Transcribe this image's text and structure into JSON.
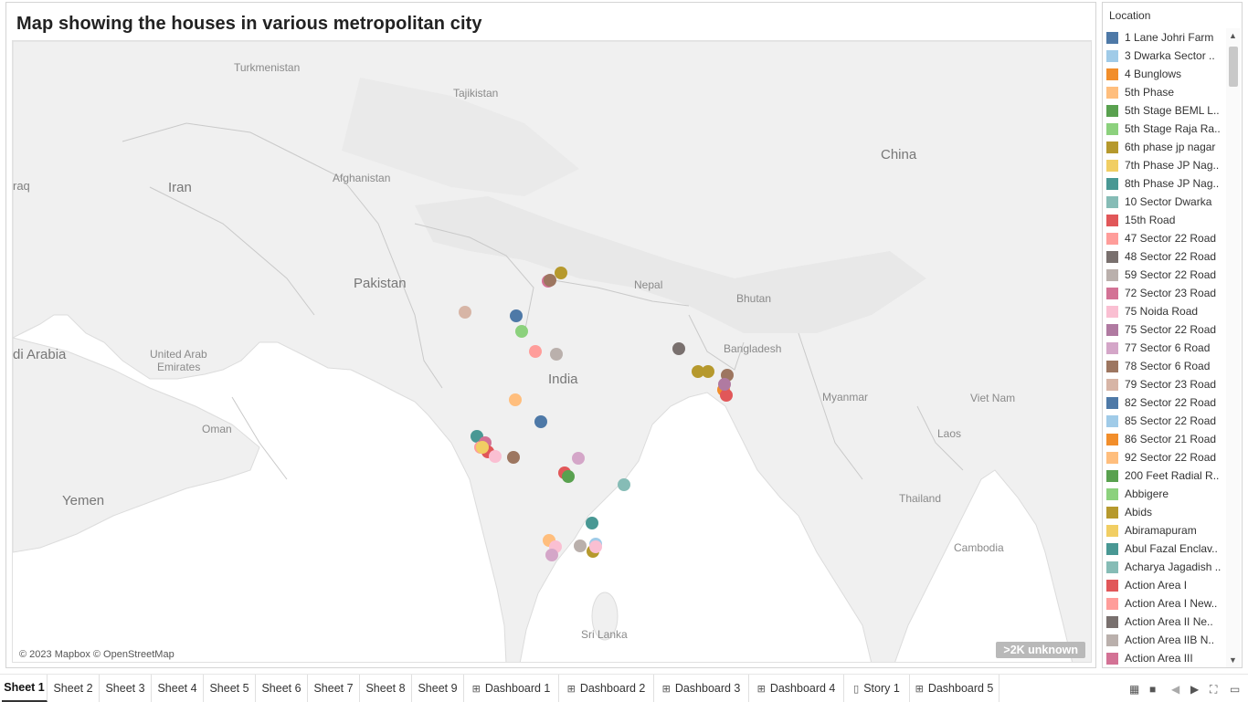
{
  "sheet": {
    "title": "Map showing the houses in various metropolitan city",
    "map": {
      "labels": {
        "turkmenistan": "Turkmenistan",
        "tajikistan": "Tajikistan",
        "afghanistan": "Afghanistan",
        "iran": "Iran",
        "iraq": "raq",
        "pakistan": "Pakistan",
        "nepal": "Nepal",
        "bhutan": "Bhutan",
        "china": "China",
        "saudi": "di Arabia",
        "uae1": "United Arab",
        "uae2": "Emirates",
        "india": "India",
        "bangladesh": "Bangladesh",
        "myanmar": "Myanmar",
        "vietnam": "Viet Nam",
        "laos": "Laos",
        "oman": "Oman",
        "thailand": "Thailand",
        "cambodia": "Cambodia",
        "yemen": "Yemen",
        "srilanka": "Sri Lanka"
      },
      "attribution": "© 2023 Mapbox © OpenStreetMap",
      "unknown_badge": ">2K unknown"
    }
  },
  "legend": {
    "title": "Location",
    "items": [
      {
        "label": "1 Lane Johri Farm",
        "color": "#4e79a7"
      },
      {
        "label": "3 Dwarka Sector ..",
        "color": "#a0cbe8"
      },
      {
        "label": "4 Bunglows",
        "color": "#f28e2b"
      },
      {
        "label": "5th Phase",
        "color": "#ffbe7d"
      },
      {
        "label": "5th Stage BEML L..",
        "color": "#59a14f"
      },
      {
        "label": "5th Stage Raja Ra..",
        "color": "#8cd17d"
      },
      {
        "label": "6th phase jp nagar",
        "color": "#b6992d"
      },
      {
        "label": "7th Phase JP Nag..",
        "color": "#f1ce63"
      },
      {
        "label": "8th Phase JP Nag..",
        "color": "#499894"
      },
      {
        "label": "10 Sector Dwarka",
        "color": "#86bcb6"
      },
      {
        "label": "15th Road",
        "color": "#e15759"
      },
      {
        "label": "47 Sector 22 Road",
        "color": "#ff9d9a"
      },
      {
        "label": "48 Sector 22 Road",
        "color": "#79706e"
      },
      {
        "label": "59 Sector 22 Road",
        "color": "#bab0ac"
      },
      {
        "label": "72 Sector 23 Road",
        "color": "#d37295"
      },
      {
        "label": "75 Noida Road",
        "color": "#fabfd2"
      },
      {
        "label": "75 Sector 22 Road",
        "color": "#b07aa1"
      },
      {
        "label": "77 Sector 6 Road",
        "color": "#d4a6c8"
      },
      {
        "label": "78 Sector 6 Road",
        "color": "#9d7660"
      },
      {
        "label": "79 Sector 23 Road",
        "color": "#d7b5a6"
      },
      {
        "label": "82 Sector 22 Road",
        "color": "#4e79a7"
      },
      {
        "label": "85 Sector 22 Road",
        "color": "#a0cbe8"
      },
      {
        "label": "86 Sector 21 Road",
        "color": "#f28e2b"
      },
      {
        "label": "92 Sector 22 Road",
        "color": "#ffbe7d"
      },
      {
        "label": "200 Feet Radial R..",
        "color": "#59a14f"
      },
      {
        "label": "Abbigere",
        "color": "#8cd17d"
      },
      {
        "label": "Abids",
        "color": "#b6992d"
      },
      {
        "label": "Abiramapuram",
        "color": "#f1ce63"
      },
      {
        "label": "Abul Fazal Enclav..",
        "color": "#499894"
      },
      {
        "label": "Acharya Jagadish ..",
        "color": "#86bcb6"
      },
      {
        "label": "Action Area I",
        "color": "#e15759"
      },
      {
        "label": "Action Area I New..",
        "color": "#ff9d9a"
      },
      {
        "label": "Action Area II Ne..",
        "color": "#79706e"
      },
      {
        "label": "Action Area IIB N..",
        "color": "#bab0ac"
      },
      {
        "label": "Action Area III",
        "color": "#d37295"
      }
    ]
  },
  "tabs": [
    {
      "label": "Sheet 1",
      "icon": "",
      "active": true
    },
    {
      "label": "Sheet 2",
      "icon": ""
    },
    {
      "label": "Sheet 3",
      "icon": ""
    },
    {
      "label": "Sheet 4",
      "icon": ""
    },
    {
      "label": "Sheet 5",
      "icon": ""
    },
    {
      "label": "Sheet 6",
      "icon": ""
    },
    {
      "label": "Sheet 7",
      "icon": ""
    },
    {
      "label": "Sheet 8",
      "icon": ""
    },
    {
      "label": "Sheet 9",
      "icon": ""
    },
    {
      "label": "Dashboard 1",
      "icon": "dashboard-icon"
    },
    {
      "label": "Dashboard 2",
      "icon": "dashboard-icon"
    },
    {
      "label": "Dashboard 3",
      "icon": "dashboard-icon"
    },
    {
      "label": "Dashboard 4",
      "icon": "dashboard-icon"
    },
    {
      "label": "Story 1",
      "icon": "story-icon"
    },
    {
      "label": "Dashboard 5",
      "icon": "dashboard-icon"
    }
  ],
  "controls": [
    "grid-view-icon",
    "filmstrip-icon",
    "prev-icon",
    "next-icon",
    "fullscreen-icon",
    "presentation-icon"
  ]
}
